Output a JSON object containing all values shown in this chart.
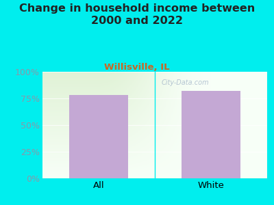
{
  "title": "Change in household income between\n2000 and 2022",
  "subtitle": "Willisville, IL",
  "categories": [
    "All",
    "White"
  ],
  "values": [
    78.0,
    82.0
  ],
  "bar_color": "#c4a8d4",
  "background_color": "#00eeee",
  "title_color": "#222222",
  "subtitle_color": "#cc6622",
  "tick_color": "#8899aa",
  "title_fontsize": 11.5,
  "subtitle_fontsize": 9.5,
  "tick_fontsize": 9,
  "xtick_fontsize": 9.5,
  "ylim": [
    0,
    100
  ],
  "yticks": [
    0,
    25,
    50,
    75,
    100
  ],
  "ytick_labels": [
    "0%",
    "25%",
    "50%",
    "75%",
    "100%"
  ],
  "plot_bg_color_topleft": [
    0.88,
    0.95,
    0.84,
    1.0
  ],
  "plot_bg_color_bottomright": [
    0.97,
    1.0,
    0.97,
    1.0
  ],
  "watermark": "City-Data.com",
  "watermark_color": "#aabbcc",
  "separator_color": "#00eeee"
}
